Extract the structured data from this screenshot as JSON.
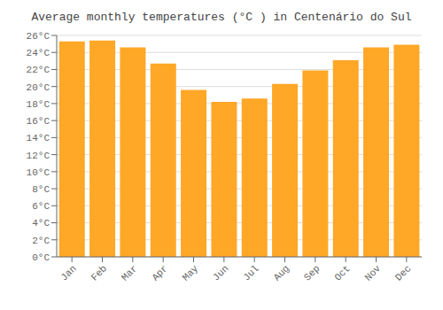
{
  "chart_data": {
    "type": "bar",
    "title": "Average monthly temperatures (°C ) in Centenário do Sul",
    "categories": [
      "Jan",
      "Feb",
      "Mar",
      "Apr",
      "May",
      "Jun",
      "Jul",
      "Aug",
      "Sep",
      "Oct",
      "Nov",
      "Dec"
    ],
    "values": [
      25.3,
      25.4,
      24.6,
      22.7,
      19.6,
      18.2,
      18.6,
      20.3,
      21.9,
      23.1,
      24.6,
      24.9
    ],
    "color": "#FFA726",
    "ylim": [
      0,
      26
    ],
    "yticks": [
      {
        "value": 0,
        "label": "0°C"
      },
      {
        "value": 2,
        "label": "2°C"
      },
      {
        "value": 4,
        "label": "4°C"
      },
      {
        "value": 6,
        "label": "6°C"
      },
      {
        "value": 8,
        "label": "8°C"
      },
      {
        "value": 10,
        "label": "10°C"
      },
      {
        "value": 12,
        "label": "12°C"
      },
      {
        "value": 14,
        "label": "14°C"
      },
      {
        "value": 16,
        "label": "16°C"
      },
      {
        "value": 18,
        "label": "18°C"
      },
      {
        "value": 20,
        "label": "20°C"
      },
      {
        "value": 22,
        "label": "22°C"
      },
      {
        "value": 24,
        "label": "24°C"
      },
      {
        "value": 26,
        "label": "26°C"
      }
    ],
    "grid": true
  }
}
